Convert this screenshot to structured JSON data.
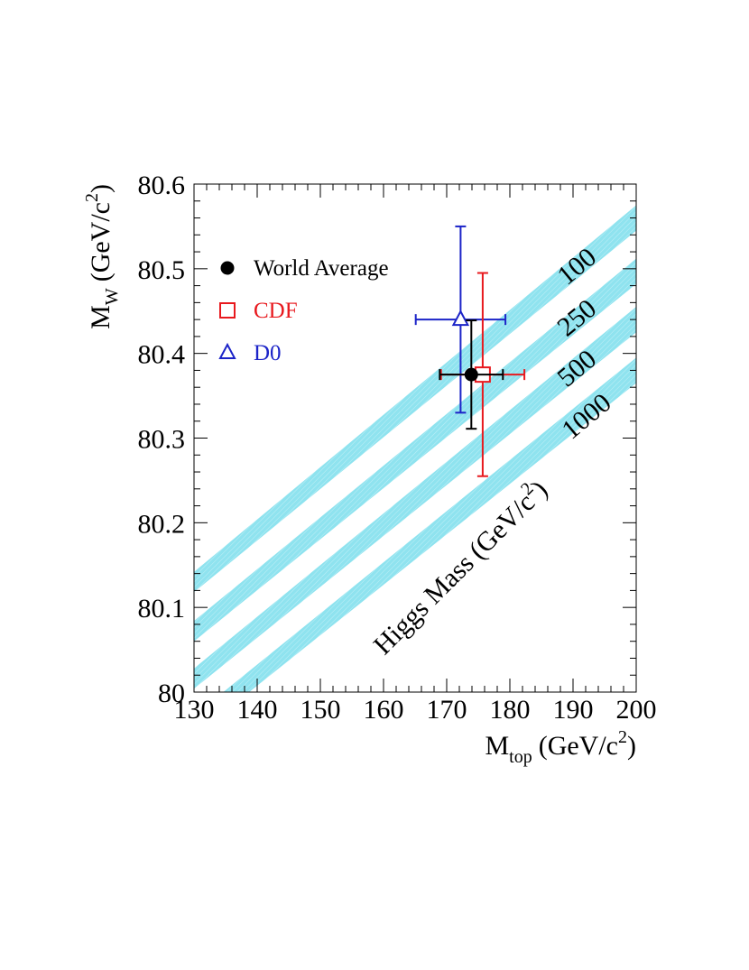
{
  "chart_data": {
    "type": "scatter",
    "xlabel": {
      "main": "M",
      "sub": "top",
      "unit": "(GeV/c",
      "sup": "2",
      "close": ")"
    },
    "ylabel": {
      "main": "M",
      "sub": "W",
      "unit": "(GeV/c",
      "sup": "2",
      "close": ")"
    },
    "xlim": [
      130,
      200
    ],
    "ylim": [
      80,
      80.6
    ],
    "x_ticks": [
      130,
      140,
      150,
      160,
      170,
      180,
      190,
      200
    ],
    "x_tick_labels": [
      "130",
      "140",
      "150",
      "160",
      "170",
      "180",
      "190",
      "200"
    ],
    "y_ticks": [
      80,
      80.1,
      80.2,
      80.3,
      80.4,
      80.5,
      80.6
    ],
    "y_tick_labels": [
      "80",
      "80.1",
      "80.2",
      "80.3",
      "80.4",
      "80.5",
      "80.6"
    ],
    "grid": false,
    "legend_position": "top-left",
    "series": [
      {
        "name": "World Average",
        "marker": "filled-circle",
        "color": "#000000",
        "x": 173.9,
        "y": 80.375,
        "x_err": 5.0,
        "y_err": 0.064
      },
      {
        "name": "CDF",
        "marker": "open-square",
        "color": "#e8191e",
        "x": 175.7,
        "y": 80.375,
        "x_err": 6.6,
        "y_err": 0.12
      },
      {
        "name": "D0",
        "marker": "open-triangle",
        "color": "#1c24c8",
        "x": 172.2,
        "y": 80.44,
        "x_err": 7.1,
        "y_err": 0.11
      }
    ],
    "bands": {
      "color": "#8fe3ef",
      "title": {
        "main": "Higgs Mass",
        "unit": "(GeV/c",
        "sup": "2",
        "close": ")"
      },
      "items": [
        {
          "label": "100",
          "y_at_130": [
            80.118,
            80.142
          ],
          "y_at_200": [
            80.545,
            80.575
          ]
        },
        {
          "label": "250",
          "y_at_130": [
            80.06,
            80.084
          ],
          "y_at_200": [
            80.482,
            80.512
          ]
        },
        {
          "label": "500",
          "y_at_130": [
            80.004,
            80.028
          ],
          "y_at_200": [
            80.425,
            80.455
          ]
        },
        {
          "label": "1000",
          "y_at_130": [
            79.948,
            79.972
          ],
          "y_at_200": [
            80.365,
            80.395
          ]
        }
      ]
    }
  }
}
